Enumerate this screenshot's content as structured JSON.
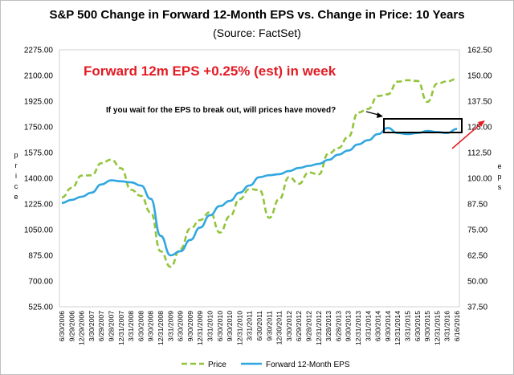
{
  "chart_data": {
    "type": "line",
    "title": "S&P 500 Change in Forward 12-Month EPS vs. Change in Price: 10 Years",
    "subtitle": "(Source: FactSet)",
    "ylabel_left": "Price",
    "ylabel_right": "EPS",
    "ylim_left": [
      525,
      2275
    ],
    "yticks_left": [
      "525.00",
      "700.00",
      "875.00",
      "1050.00",
      "1225.00",
      "1400.00",
      "1575.00",
      "1750.00",
      "1925.00",
      "2100.00",
      "2275.00"
    ],
    "ylim_right": [
      37.5,
      162.5
    ],
    "yticks_right": [
      "37.50",
      "50.00",
      "62.50",
      "75.00",
      "87.50",
      "100.00",
      "112.50",
      "125.00",
      "137.50",
      "150.00",
      "162.50"
    ],
    "x_labels": [
      "6/30/2006",
      "9/29/2006",
      "12/29/2006",
      "3/30/2007",
      "6/29/2007",
      "9/28/2007",
      "12/31/2007",
      "3/31/2008",
      "6/30/2008",
      "9/30/2008",
      "12/31/2008",
      "3/31/2009",
      "6/30/2009",
      "9/30/2009",
      "12/31/2009",
      "3/31/2010",
      "6/30/2010",
      "9/30/2010",
      "12/31/2010",
      "3/31/2011",
      "6/30/2011",
      "9/30/2011",
      "12/30/2011",
      "3/30/2012",
      "6/29/2012",
      "9/28/2012",
      "12/31/2012",
      "3/28/2013",
      "6/28/2013",
      "9/30/2013",
      "12/31/2013",
      "3/31/2014",
      "6/30/2014",
      "9/30/2014",
      "12/31/2014",
      "3/31/2015",
      "6/30/2015",
      "9/30/2015",
      "12/31/2015",
      "3/31/2016",
      "6/16/2016"
    ],
    "series": [
      {
        "name": "Price",
        "axis": "left",
        "color": "#92c43b",
        "style": "dashed",
        "values": [
          1270,
          1335,
          1418,
          1420,
          1503,
          1527,
          1468,
          1322,
          1280,
          1166,
          903,
          797,
          919,
          1057,
          1115,
          1169,
          1030,
          1141,
          1257,
          1326,
          1320,
          1131,
          1257,
          1408,
          1362,
          1440,
          1426,
          1569,
          1606,
          1682,
          1848,
          1872,
          1960,
          1972,
          2058,
          2068,
          2063,
          1920,
          2044,
          2060,
          2077
        ]
      },
      {
        "name": "Forward 12-Month EPS",
        "axis": "right",
        "color": "#31a7e0",
        "style": "solid",
        "values": [
          88.0,
          89.5,
          91.0,
          93.0,
          97.0,
          99.0,
          98.5,
          98.0,
          96.5,
          90.0,
          72.0,
          62.5,
          64.5,
          70.0,
          76.0,
          82.0,
          86.5,
          89.0,
          93.0,
          96.5,
          100.5,
          101.5,
          102.0,
          103.5,
          105.0,
          106.0,
          107.0,
          109.0,
          111.5,
          113.5,
          116.5,
          118.5,
          121.5,
          124.5,
          122.0,
          121.5,
          122.0,
          123.0,
          122.5,
          122.0,
          124.0
        ]
      }
    ],
    "legend": {
      "position": "bottom",
      "items": [
        "Price",
        "Forward 12-Month EPS"
      ]
    },
    "annotations": [
      {
        "text": "Forward 12m EPS +0.25% (est) in week",
        "color": "#e31b23"
      },
      {
        "text": "If you wait for the EPS to break out, will prices have moved?",
        "color": "#000000"
      }
    ],
    "grid": false
  }
}
